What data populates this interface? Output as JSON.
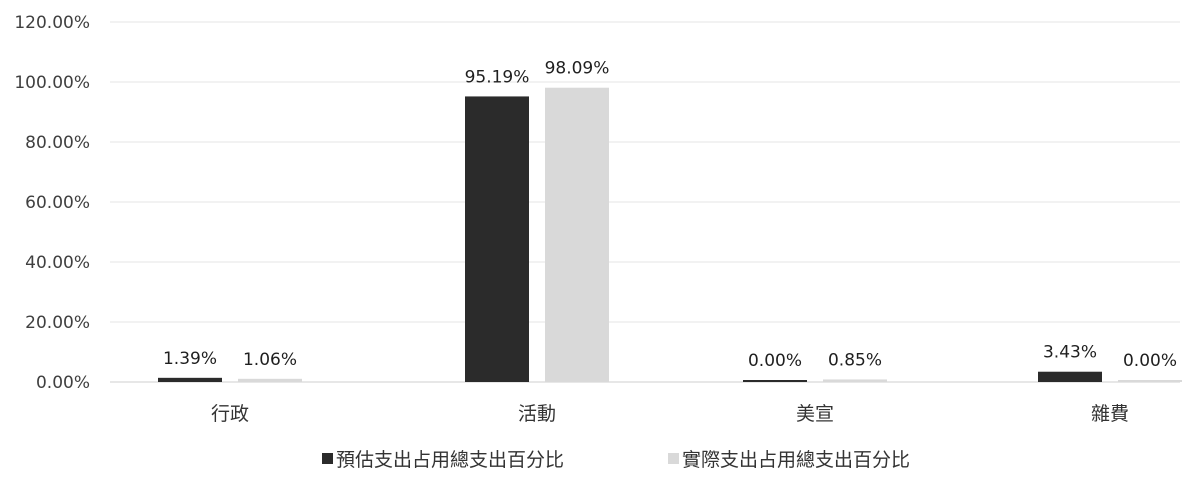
{
  "chart_data": {
    "type": "bar",
    "categories": [
      "行政",
      "活動",
      "美宣",
      "雜費"
    ],
    "series": [
      {
        "name": "預估支出占用總支出百分比",
        "values": [
          1.39,
          95.19,
          0.0,
          3.43
        ],
        "labels": [
          "1.39%",
          "95.19%",
          "0.00%",
          "3.43%"
        ],
        "color": "#2b2b2b"
      },
      {
        "name": "實際支出占用總支出百分比",
        "values": [
          1.06,
          98.09,
          0.85,
          0.0
        ],
        "labels": [
          "1.06%",
          "98.09%",
          "0.85%",
          "0.00%"
        ],
        "color": "#d9d9d9"
      }
    ],
    "yticks": [
      "0.00%",
      "20.00%",
      "40.00%",
      "60.00%",
      "80.00%",
      "100.00%",
      "120.00%"
    ],
    "ylim": [
      0,
      120
    ],
    "grid": true,
    "legend_position": "bottom"
  }
}
